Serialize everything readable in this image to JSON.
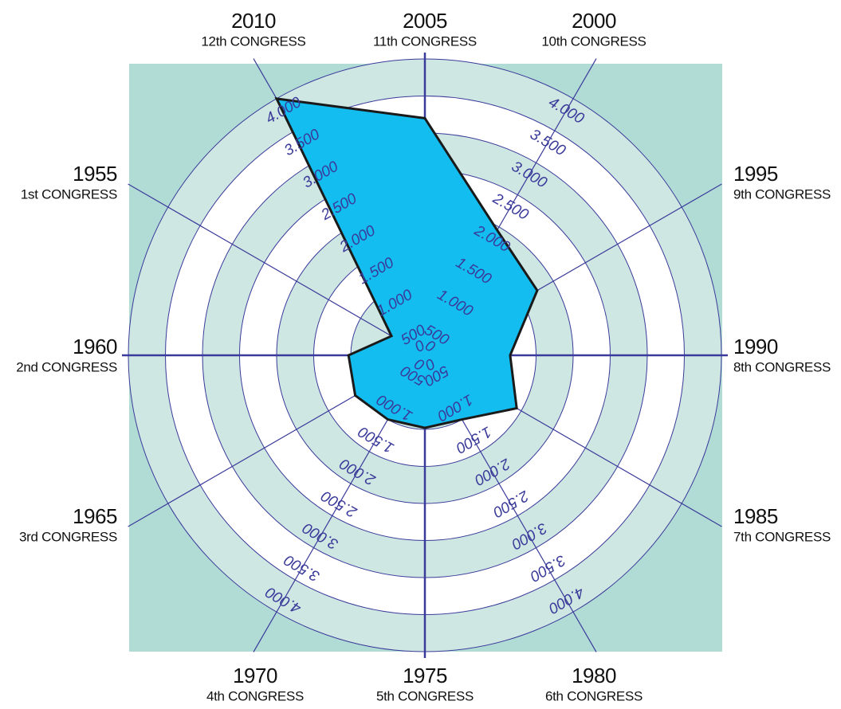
{
  "chart_data": {
    "type": "radar",
    "categories": [
      "2005",
      "2000",
      "1995",
      "1990",
      "1985",
      "1980",
      "1975",
      "1970",
      "1965",
      "1960",
      "1955",
      "2010"
    ],
    "subcategories": [
      "11th CONGRESS",
      "10th CONGRESS",
      "9th CONGRESS",
      "8th CONGRESS",
      "7th CONGRESS",
      "6th CONGRESS",
      "5th CONGRESS",
      "4th CONGRESS",
      "3rd CONGRESS",
      "2nd CONGRESS",
      "1st CONGRESS",
      "12th CONGRESS"
    ],
    "values": [
      3200,
      1950,
      1750,
      1150,
      1430,
      1000,
      980,
      1000,
      1085,
      1030,
      520,
      4000
    ],
    "color": "#13bdf0",
    "rlim": [
      0,
      4000
    ],
    "rticks": [
      0,
      500,
      {
        "value": 1000,
        "label": "1.000"
      },
      {
        "value": 1500,
        "label": "1.500"
      },
      {
        "value": 2000,
        "label": "2.000"
      },
      {
        "value": 2500,
        "label": "2.500"
      },
      {
        "value": 3000,
        "label": "3.000"
      },
      {
        "value": 3500,
        "label": "3.500"
      },
      {
        "value": 4000,
        "label": "4.000"
      }
    ]
  }
}
